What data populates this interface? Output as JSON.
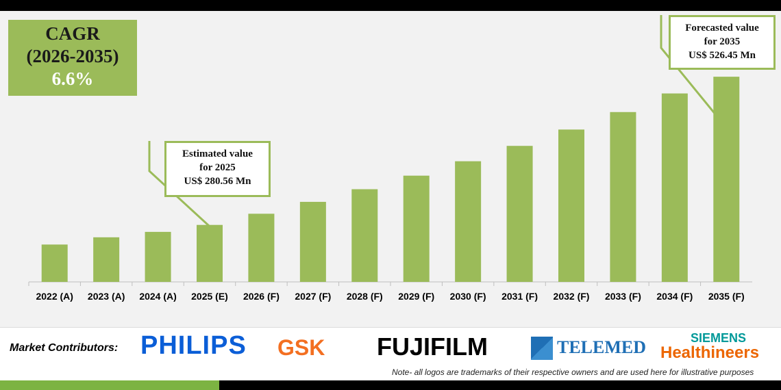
{
  "chart_data": {
    "type": "bar",
    "categories": [
      "2022 (A)",
      "2023 (A)",
      "2024 (A)",
      "2025 (E)",
      "2026 (F)",
      "2027 (F)",
      "2028 (F)",
      "2029 (F)",
      "2030 (F)",
      "2031 (F)",
      "2032 (F)",
      "2033 (F)",
      "2034 (F)",
      "2035 (F)"
    ],
    "values": [
      248,
      260,
      269,
      280.56,
      299.1,
      318.8,
      339.8,
      362.3,
      386.2,
      411.7,
      438.8,
      467.8,
      498.7,
      526.45
    ],
    "ylim": [
      186,
      530
    ],
    "bar_color": "#9bbb59",
    "grid": false
  },
  "cagr": {
    "line1": "CAGR",
    "line2": "(2026-2035)",
    "value": "6.6%"
  },
  "callout_2025": {
    "line1": "Estimated value",
    "line2": "for 2025",
    "line3": "US$ 280.56 Mn"
  },
  "callout_2035": {
    "line1": "Forecasted value",
    "line2": "for 2035",
    "line3": "US$ 526.45 Mn"
  },
  "contributors": {
    "label": "Market Contributors:",
    "logos": [
      "PHILIPS",
      "GSK",
      "FUJIFILM",
      "TELEMED",
      "SIEMENS",
      "Healthineers"
    ]
  },
  "note": "Note- all logos are trademarks of their respective owners and are used here for illustrative purposes"
}
